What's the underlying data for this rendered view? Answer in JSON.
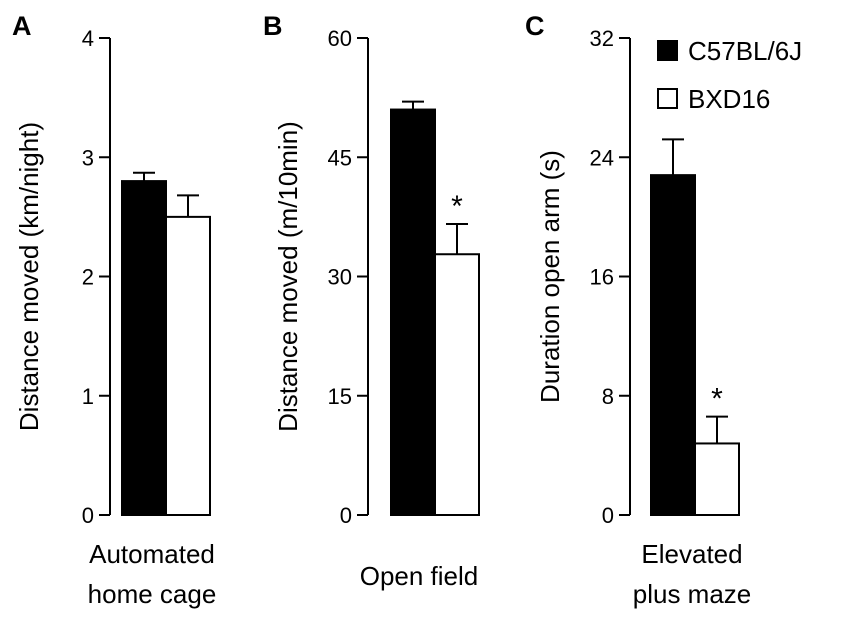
{
  "figure": {
    "legend": [
      {
        "label": "C57BL/6J",
        "color": "#000000"
      },
      {
        "label": "BXD16",
        "color": "#ffffff"
      }
    ]
  },
  "chart_data": [
    {
      "type": "bar",
      "panel": "A",
      "title": "",
      "xlabel": [
        "Automated",
        "home cage"
      ],
      "ylabel": "Distance moved (km/night)",
      "ylim": [
        0,
        4
      ],
      "yticks": [
        0,
        1,
        2,
        3,
        4
      ],
      "series": [
        {
          "name": "C57BL/6J",
          "color": "#000000",
          "value": 2.8,
          "error": 0.07,
          "significance": ""
        },
        {
          "name": "BXD16",
          "color": "#ffffff",
          "value": 2.5,
          "error": 0.18,
          "significance": ""
        }
      ]
    },
    {
      "type": "bar",
      "panel": "B",
      "title": "",
      "xlabel": [
        "Open field"
      ],
      "ylabel": "Distance moved (m/10min)",
      "ylim": [
        0,
        60
      ],
      "yticks": [
        0,
        15,
        30,
        45,
        60
      ],
      "series": [
        {
          "name": "C57BL/6J",
          "color": "#000000",
          "value": 51,
          "error": 1.0,
          "significance": ""
        },
        {
          "name": "BXD16",
          "color": "#ffffff",
          "value": 32.8,
          "error": 3.8,
          "significance": "*"
        }
      ]
    },
    {
      "type": "bar",
      "panel": "C",
      "title": "",
      "xlabel": [
        "Elevated",
        "plus maze"
      ],
      "ylabel": "Duration open arm (s)",
      "ylim": [
        0,
        32
      ],
      "yticks": [
        0,
        8,
        16,
        24,
        32
      ],
      "series": [
        {
          "name": "C57BL/6J",
          "color": "#000000",
          "value": 22.8,
          "error": 2.4,
          "significance": ""
        },
        {
          "name": "BXD16",
          "color": "#ffffff",
          "value": 4.8,
          "error": 1.8,
          "significance": "*"
        }
      ]
    }
  ]
}
